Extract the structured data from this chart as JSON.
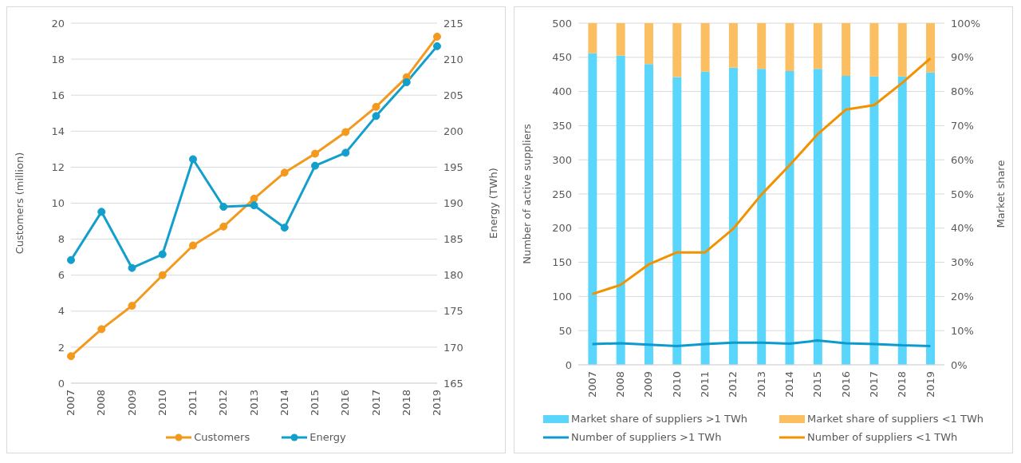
{
  "chart_data": [
    {
      "type": "line",
      "categories": [
        "2007",
        "2008",
        "2009",
        "2010",
        "2011",
        "2012",
        "2013",
        "2014",
        "2015",
        "2016",
        "2017",
        "2018",
        "2019"
      ],
      "ylabel": "Customers (million)",
      "y2label": "Energy (TWh)",
      "ylim": [
        0,
        20
      ],
      "yticks": [
        0,
        2,
        4,
        6,
        8,
        10,
        12,
        14,
        16,
        18,
        20
      ],
      "y2lim": [
        165,
        215
      ],
      "y2ticks": [
        165,
        170,
        175,
        180,
        185,
        190,
        195,
        200,
        205,
        210,
        215
      ],
      "grid": "y",
      "legend": "bottom",
      "marker": "circle",
      "series": [
        {
          "name": "Customers",
          "color": "#f39a1e",
          "values": [
            1.5,
            3.0,
            4.3,
            6.0,
            7.65,
            8.7,
            10.25,
            11.7,
            12.75,
            13.95,
            15.35,
            17.0,
            19.25
          ]
        },
        {
          "name": "Energy",
          "color": "#139fcc",
          "axis": "y2",
          "values": [
            182.1,
            188.8,
            181.0,
            182.9,
            196.1,
            189.5,
            189.7,
            186.6,
            195.2,
            197.0,
            202.1,
            206.8,
            211.8
          ]
        }
      ]
    },
    {
      "type": "bar",
      "stacked": true,
      "categories": [
        "2007",
        "2008",
        "2009",
        "2010",
        "2011",
        "2012",
        "2013",
        "2014",
        "2015",
        "2016",
        "2017",
        "2018",
        "2019"
      ],
      "ylabel": "Number of active suppliers",
      "y2label": "Market share",
      "ylim": [
        0,
        500
      ],
      "yticks": [
        0,
        50,
        100,
        150,
        200,
        250,
        300,
        350,
        400,
        450,
        500
      ],
      "y2lim": [
        0,
        100
      ],
      "y2ticks": [
        {
          "value": 0,
          "label": "0%"
        },
        {
          "value": 10,
          "label": "10%"
        },
        {
          "value": 20,
          "label": "20%"
        },
        {
          "value": 30,
          "label": "30%"
        },
        {
          "value": 40,
          "label": "40%"
        },
        {
          "value": 50,
          "label": "50%"
        },
        {
          "value": 60,
          "label": "60%"
        },
        {
          "value": 70,
          "label": "70%"
        },
        {
          "value": 80,
          "label": "80%"
        },
        {
          "value": 90,
          "label": "90%"
        },
        {
          "value": 100,
          "label": "100%"
        }
      ],
      "grid": "y",
      "legend": "bottom",
      "series": [
        {
          "name": "Market share of suppliers >1 TWh",
          "color": "#5ad5fb",
          "axis": "y2",
          "values": [
            91.2,
            90.5,
            88.0,
            84.2,
            85.8,
            87.0,
            86.6,
            86.0,
            86.6,
            84.6,
            84.4,
            84.4,
            85.6
          ]
        },
        {
          "name": "Market share of suppliers <1 TWh",
          "color": "#fbbe60",
          "axis": "y2",
          "values": [
            8.8,
            9.5,
            12.0,
            15.8,
            14.2,
            13.0,
            13.4,
            14.0,
            13.4,
            15.4,
            15.6,
            15.6,
            14.4
          ]
        },
        {
          "name": "Number of suppliers >1 TWh",
          "type": "line",
          "color": "#0c9bcf",
          "values": [
            30.5,
            31.5,
            29.5,
            27.5,
            30.5,
            32.5,
            32.5,
            31,
            35.5,
            31.5,
            30.5,
            28.5,
            27.5
          ]
        },
        {
          "name": "Number of suppliers <1 TWh",
          "type": "line",
          "color": "#f39200",
          "values": [
            103.5,
            117,
            147,
            164.5,
            164.5,
            199,
            249,
            292,
            337.5,
            373.5,
            380,
            412.5,
            448.5
          ]
        }
      ]
    }
  ]
}
